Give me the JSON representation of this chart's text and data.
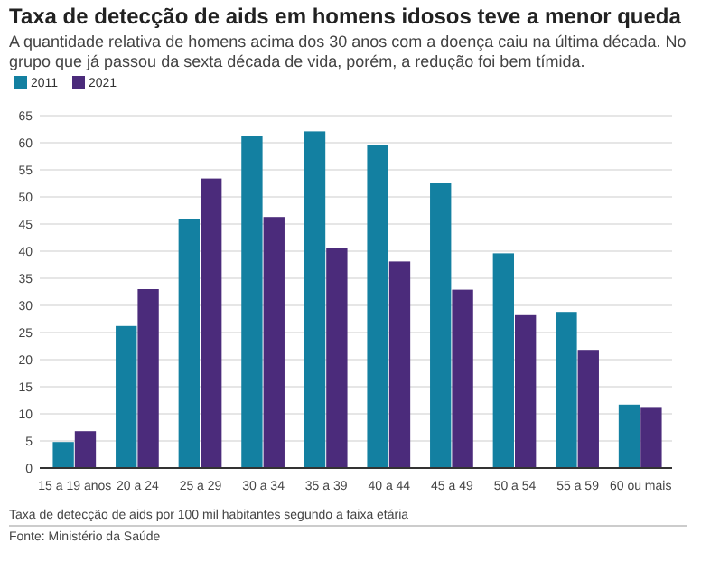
{
  "chart_data": {
    "type": "bar",
    "title": "Taxa de detecção de aids em homens idosos teve a menor queda",
    "subtitle": "A quantidade relativa de homens acima dos 30 anos com a doença caiu na última década. No grupo que já passou da sexta década de vida, porém, a redução foi bem tímida.",
    "categories": [
      "15 a 19 anos",
      "20 a 24",
      "25 a 29",
      "30 a 34",
      "35 a 39",
      "40 a 44",
      "45 a 49",
      "50 a 54",
      "55 a 59",
      "60 ou mais"
    ],
    "series": [
      {
        "name": "2011",
        "color": "#1380a1",
        "values": [
          4.8,
          26.2,
          46.0,
          61.3,
          62.1,
          59.5,
          52.5,
          39.6,
          28.8,
          11.7
        ]
      },
      {
        "name": "2021",
        "color": "#4b2b7b",
        "values": [
          6.8,
          33.0,
          53.4,
          46.3,
          40.6,
          38.1,
          32.9,
          28.2,
          21.8,
          11.1
        ]
      }
    ],
    "ylim": [
      0,
      65
    ],
    "yticks": [
      0,
      5,
      10,
      15,
      20,
      25,
      30,
      35,
      40,
      45,
      50,
      55,
      60,
      65
    ],
    "grid": "y",
    "legend": "top left",
    "annotations": [
      "Taxa de detecção de aids por 100 mil habitantes segundo a faixa etária",
      "Fonte: Ministério da Saúde"
    ]
  }
}
